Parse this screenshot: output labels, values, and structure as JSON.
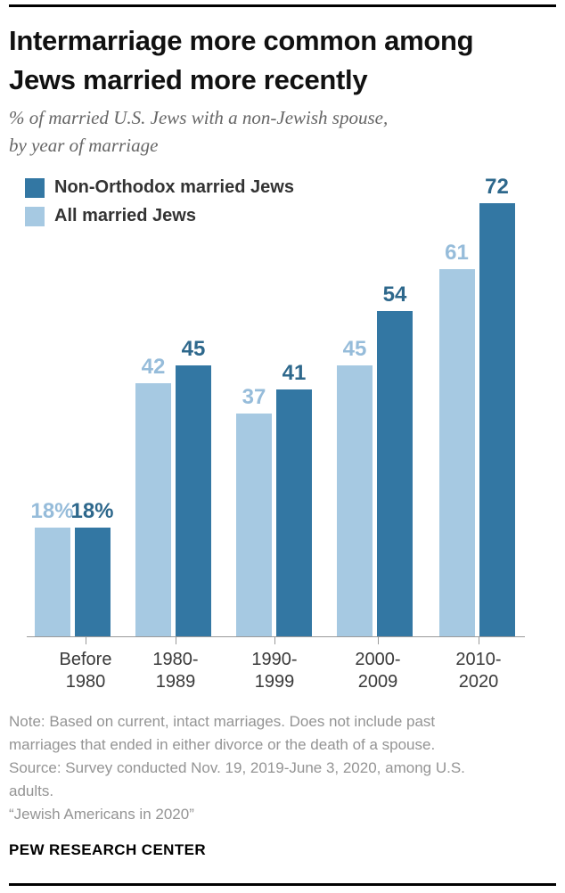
{
  "header": {
    "title_lines": [
      "Intermarriage more common among",
      "Jews married more recently"
    ],
    "subtitle_lines": [
      "% of married U.S. Jews with a non-Jewish spouse,",
      "by year of marriage"
    ]
  },
  "colors": {
    "dark_blue_bar": "#3377A3",
    "light_blue_bar": "#A6C9E2",
    "dark_blue_label": "#2E688C",
    "light_blue_label": "#96BCDA",
    "axis": "#9a9a9a"
  },
  "chart_data": {
    "type": "bar",
    "title": "Intermarriage more common among Jews married more recently",
    "subtitle": "% of married U.S. Jews with a non-Jewish spouse, by year of marriage",
    "categories": [
      "Before 1980",
      "1980-1989",
      "1990-1999",
      "2000-2009",
      "2010-2020"
    ],
    "category_label_lines": [
      [
        "Before",
        "1980"
      ],
      [
        "1980-",
        "1989"
      ],
      [
        "1990-",
        "1999"
      ],
      [
        "2000-",
        "2009"
      ],
      [
        "2010-",
        "2020"
      ]
    ],
    "series": [
      {
        "name": "Non-Orthodox married Jews",
        "values": [
          18,
          45,
          41,
          54,
          72
        ],
        "value_labels": [
          "18%",
          "45",
          "41",
          "54",
          "72"
        ],
        "bar_color": "#3377A3",
        "label_color": "#2E688C"
      },
      {
        "name": "All married Jews",
        "values": [
          18,
          42,
          37,
          45,
          61
        ],
        "value_labels": [
          "18%",
          "42",
          "37",
          "45",
          "61"
        ],
        "bar_color": "#A6C9E2",
        "label_color": "#96BCDA"
      }
    ],
    "ylim": [
      0,
      72
    ],
    "y_axis_shown": false,
    "grid": false,
    "legend_position": "top-left"
  },
  "footer": {
    "note_lines": [
      "Note: Based on current, intact marriages. Does not include past",
      "marriages that ended in either divorce or the death of a spouse.",
      "Source: Survey conducted Nov. 19, 2019-June 3, 2020, among U.S.",
      "adults.",
      "“Jewish Americans in 2020”"
    ],
    "brand": "PEW RESEARCH CENTER"
  }
}
